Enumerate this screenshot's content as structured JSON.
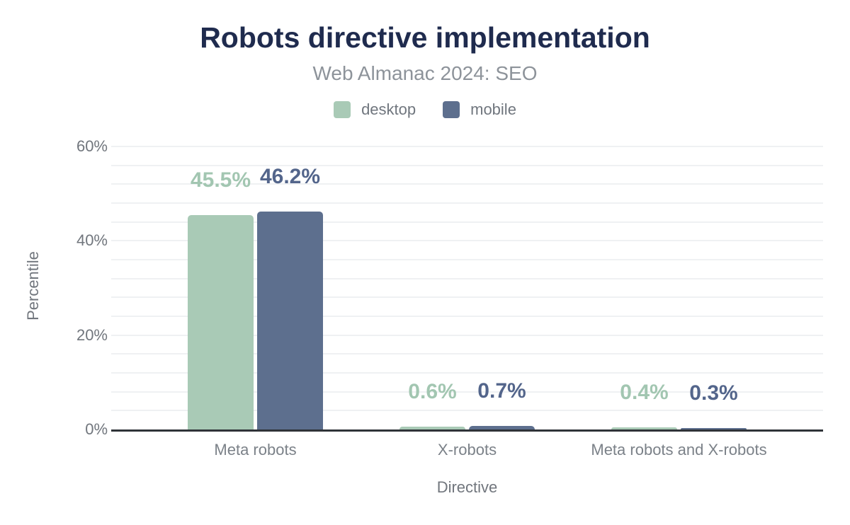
{
  "chart_data": {
    "type": "bar",
    "title": "Robots directive implementation",
    "subtitle": "Web Almanac 2024: SEO",
    "xlabel": "Directive",
    "ylabel": "Percentile",
    "categories": [
      "Meta robots",
      "X-robots",
      "Meta robots and X-robots"
    ],
    "series": [
      {
        "name": "desktop",
        "color": "#a9cab6",
        "label_color": "#a2c6b1",
        "values": [
          45.5,
          0.6,
          0.4
        ],
        "value_labels": [
          "45.5%",
          "0.6%",
          "0.4%"
        ]
      },
      {
        "name": "mobile",
        "color": "#5d6f8e",
        "label_color": "#53658b",
        "values": [
          46.2,
          0.7,
          0.3
        ],
        "value_labels": [
          "46.2%",
          "0.7%",
          "0.3%"
        ]
      }
    ],
    "y_axis": {
      "unit": "%",
      "range": [
        0,
        61
      ],
      "minor_grid_step": 4,
      "ticks": [
        {
          "value": 0,
          "label": "0%"
        },
        {
          "value": 20,
          "label": "20%"
        },
        {
          "value": 40,
          "label": "40%"
        },
        {
          "value": 60,
          "label": "60%"
        }
      ]
    },
    "legend_position": "top-center",
    "grid": true,
    "axis_line_color": "#2f3338",
    "title_color": "#1f2b4e"
  }
}
